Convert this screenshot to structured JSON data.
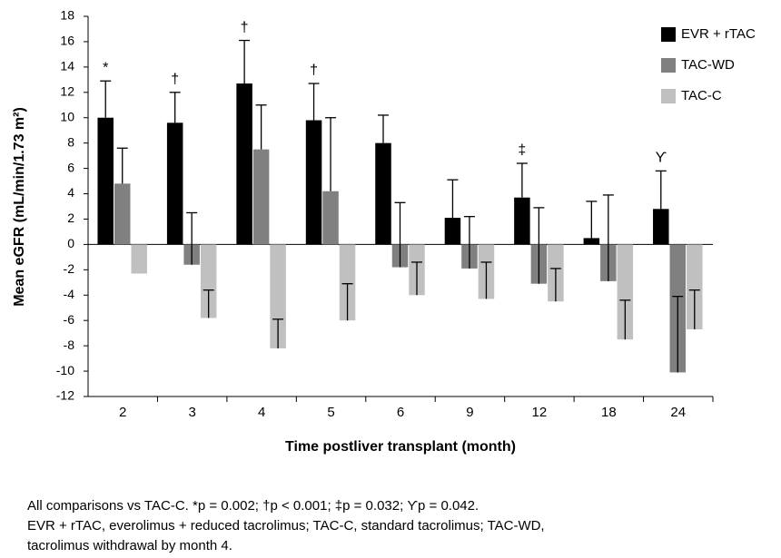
{
  "chart_data": {
    "type": "bar",
    "x_label": "Time postliver transplant (month)",
    "y_label": "Mean eGFR (mL/min/1.73 m²)",
    "categories": [
      "2",
      "3",
      "4",
      "5",
      "6",
      "9",
      "12",
      "18",
      "24"
    ],
    "series": [
      {
        "name": "EVR + rTAC",
        "color": "#000000",
        "values": [
          10.0,
          9.6,
          12.7,
          9.8,
          8.0,
          2.1,
          3.7,
          0.5,
          2.8
        ],
        "errors": [
          2.9,
          2.4,
          3.4,
          2.9,
          2.2,
          3.0,
          2.7,
          2.9,
          3.0
        ]
      },
      {
        "name": "TAC-WD",
        "color": "#808080",
        "values": [
          4.8,
          -1.6,
          7.5,
          4.2,
          -1.8,
          -1.9,
          -3.1,
          -2.9,
          -10.1
        ],
        "errors": [
          2.8,
          4.1,
          3.5,
          5.8,
          5.1,
          4.1,
          6.0,
          6.8,
          6.0
        ]
      },
      {
        "name": "TAC-C",
        "color": "#c0c0c0",
        "values": [
          -2.3,
          -5.8,
          -8.2,
          -6.0,
          -4.0,
          -4.3,
          -4.5,
          -7.5,
          -6.7
        ],
        "errors": [
          null,
          2.2,
          2.3,
          2.9,
          2.6,
          2.9,
          2.6,
          3.1,
          3.1
        ]
      }
    ],
    "annotations": [
      {
        "category": "2",
        "text": "*"
      },
      {
        "category": "3",
        "text": "†"
      },
      {
        "category": "4",
        "text": "†"
      },
      {
        "category": "5",
        "text": "†"
      },
      {
        "category": "12",
        "text": "‡"
      },
      {
        "category": "24",
        "text": "ϒ"
      }
    ],
    "ylim": [
      -12,
      18
    ],
    "yticks": [
      -12,
      -10,
      -8,
      -6,
      -4,
      -2,
      0,
      2,
      4,
      6,
      8,
      10,
      12,
      14,
      16,
      18
    ],
    "legend": "top-right",
    "footnote": [
      "All comparisons vs TAC-C.  *p = 0.002; †p < 0.001; ‡p = 0.032; ϒp = 0.042.",
      "EVR + rTAC,  everolimus  + reduced tacrolimus; TAC-C,  standard tacrolimus; TAC-WD,",
      "tacrolimus withdrawal  by month 4."
    ]
  }
}
